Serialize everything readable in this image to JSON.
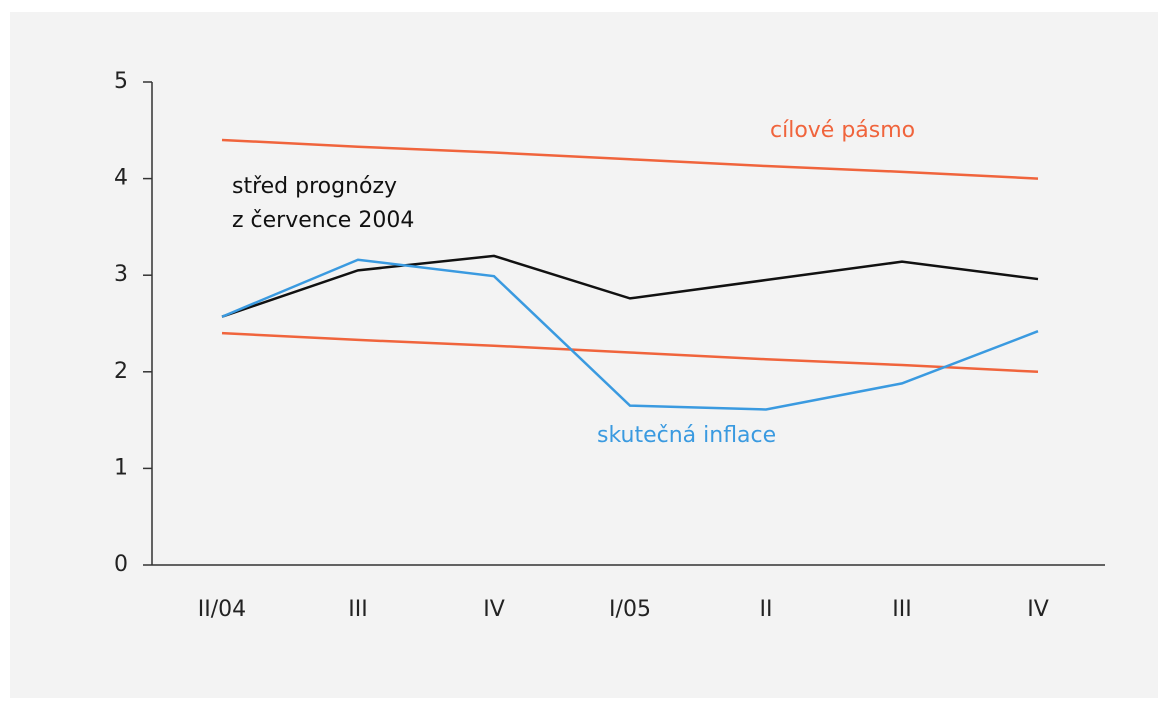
{
  "chart_data": {
    "type": "line",
    "categories": [
      "II/04",
      "III",
      "IV",
      "I/05",
      "II",
      "III",
      "IV"
    ],
    "band": {
      "name": "cílové pásmo",
      "color": "#f0643c",
      "upper": [
        4.4,
        4.33,
        4.27,
        4.2,
        4.13,
        4.07,
        4.0
      ],
      "lower": [
        2.4,
        2.33,
        2.27,
        2.2,
        2.13,
        2.07,
        2.0
      ]
    },
    "series": [
      {
        "name": [
          "střed prognózy",
          "z července 2004"
        ],
        "color": "#111111",
        "values": [
          2.57,
          3.05,
          3.2,
          2.76,
          2.95,
          3.14,
          2.96
        ]
      },
      {
        "name": "skutečná inflace",
        "color": "#3a9ae0",
        "values": [
          2.57,
          3.16,
          2.99,
          1.65,
          1.61,
          1.88,
          2.42
        ]
      }
    ],
    "ylim": [
      0,
      5
    ],
    "yticks": [
      0,
      1,
      2,
      3,
      4,
      5
    ]
  }
}
